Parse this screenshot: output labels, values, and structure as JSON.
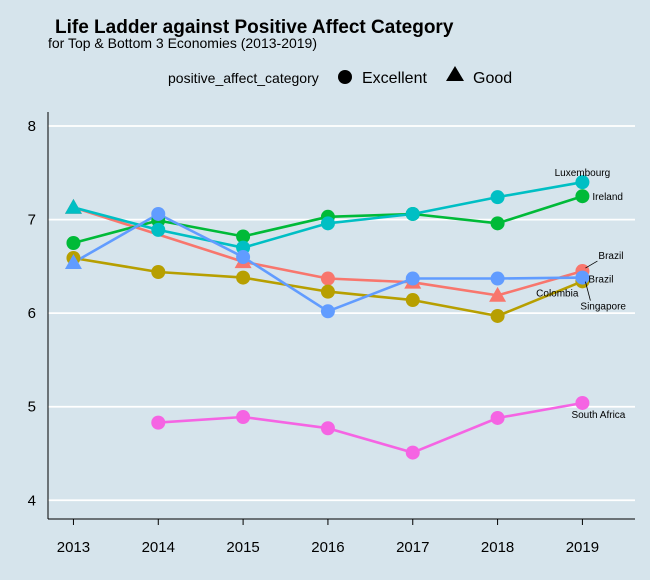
{
  "chart_data": {
    "type": "line",
    "title": "Life Ladder against Positive Affect Category",
    "subtitle": "for Top & Bottom 3 Economies (2013-2019)",
    "xlabel": "",
    "ylabel": "",
    "x": [
      2013,
      2014,
      2015,
      2016,
      2017,
      2018,
      2019
    ],
    "xlim": [
      2012.7,
      2019.62
    ],
    "ylim": [
      3.8,
      8.15
    ],
    "yticks": [
      4,
      5,
      6,
      7,
      8
    ],
    "grid": true,
    "legend": {
      "title": "positive_affect_category",
      "position": "top",
      "items": [
        {
          "label": "Excellent",
          "shape": "circle"
        },
        {
          "label": "Good",
          "shape": "triangle"
        }
      ]
    },
    "series": [
      {
        "color": "#f8766d",
        "points": [
          {
            "x": 2013,
            "y": 7.13,
            "shape": "triangle"
          },
          {
            "x": 2015,
            "y": 6.55,
            "shape": "triangle"
          },
          {
            "x": 2016,
            "y": 6.37,
            "shape": "circle"
          },
          {
            "x": 2017,
            "y": 6.33,
            "shape": "triangle"
          },
          {
            "x": 2018,
            "y": 6.19,
            "shape": "triangle"
          },
          {
            "x": 2019,
            "y": 6.45,
            "shape": "circle"
          }
        ],
        "end_label": "Brazil"
      },
      {
        "color": "#b79f00",
        "points": [
          {
            "x": 2013,
            "y": 6.59,
            "shape": "circle"
          },
          {
            "x": 2014,
            "y": 6.44,
            "shape": "circle"
          },
          {
            "x": 2015,
            "y": 6.38,
            "shape": "circle"
          },
          {
            "x": 2016,
            "y": 6.23,
            "shape": "circle"
          },
          {
            "x": 2017,
            "y": 6.14,
            "shape": "circle"
          },
          {
            "x": 2018,
            "y": 5.97,
            "shape": "circle"
          },
          {
            "x": 2019,
            "y": 6.34,
            "shape": "circle"
          }
        ],
        "end_label": "Colombia"
      },
      {
        "color": "#00ba38",
        "points": [
          {
            "x": 2013,
            "y": 6.75,
            "shape": "circle"
          },
          {
            "x": 2014,
            "y": 6.99,
            "shape": "circle"
          },
          {
            "x": 2015,
            "y": 6.82,
            "shape": "circle"
          },
          {
            "x": 2016,
            "y": 7.03,
            "shape": "circle"
          },
          {
            "x": 2017,
            "y": 7.06,
            "shape": "circle"
          },
          {
            "x": 2018,
            "y": 6.96,
            "shape": "circle"
          },
          {
            "x": 2019,
            "y": 7.25,
            "shape": "circle"
          }
        ],
        "end_label": "Ireland"
      },
      {
        "color": "#00bfc4",
        "points": [
          {
            "x": 2013,
            "y": 7.13,
            "shape": "triangle"
          },
          {
            "x": 2014,
            "y": 6.89,
            "shape": "circle"
          },
          {
            "x": 2015,
            "y": 6.7,
            "shape": "circle"
          },
          {
            "x": 2016,
            "y": 6.96,
            "shape": "circle"
          },
          {
            "x": 2017,
            "y": 7.06,
            "shape": "circle"
          },
          {
            "x": 2018,
            "y": 7.24,
            "shape": "circle"
          },
          {
            "x": 2019,
            "y": 7.4,
            "shape": "circle"
          }
        ],
        "end_label": "Luxembourg"
      },
      {
        "color": "#619cff",
        "points": [
          {
            "x": 2013,
            "y": 6.54,
            "shape": "triangle"
          },
          {
            "x": 2014,
            "y": 7.06,
            "shape": "circle"
          },
          {
            "x": 2015,
            "y": 6.6,
            "shape": "circle"
          },
          {
            "x": 2016,
            "y": 6.02,
            "shape": "circle"
          },
          {
            "x": 2017,
            "y": 6.37,
            "shape": "circle"
          },
          {
            "x": 2018,
            "y": 6.37,
            "shape": "circle"
          },
          {
            "x": 2019,
            "y": 6.38,
            "shape": "circle"
          }
        ],
        "end_label": "Singapore"
      },
      {
        "color": "#f564e3",
        "points": [
          {
            "x": 2014,
            "y": 4.83,
            "shape": "circle"
          },
          {
            "x": 2015,
            "y": 4.89,
            "shape": "circle"
          },
          {
            "x": 2016,
            "y": 4.77,
            "shape": "circle"
          },
          {
            "x": 2017,
            "y": 4.51,
            "shape": "circle"
          },
          {
            "x": 2018,
            "y": 4.88,
            "shape": "circle"
          },
          {
            "x": 2019,
            "y": 5.04,
            "shape": "circle"
          }
        ],
        "end_label": "South Africa"
      }
    ],
    "annotations": [
      {
        "text": "Luxembourg",
        "x": 2019,
        "y": 7.4
      },
      {
        "text": "Ireland",
        "x": 2019,
        "y": 7.25
      },
      {
        "text": "Brazil",
        "x": 2019,
        "y": 6.45
      },
      {
        "text": "Brazil",
        "x": 2019,
        "y": 6.38
      },
      {
        "text": "Colombia",
        "x": 2019,
        "y": 6.34
      },
      {
        "text": "Singapore",
        "x": 2019,
        "y": 6.38
      },
      {
        "text": "South Africa",
        "x": 2019,
        "y": 5.04
      }
    ]
  }
}
